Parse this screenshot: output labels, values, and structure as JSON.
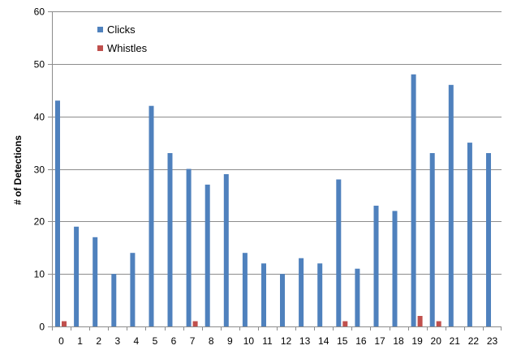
{
  "chart_data": {
    "type": "bar",
    "title": "",
    "xlabel": "",
    "ylabel": "# of Detections",
    "ylim": [
      0,
      60
    ],
    "yticks": [
      0,
      10,
      20,
      30,
      40,
      50,
      60
    ],
    "grid": true,
    "legend_position": "top-left",
    "categories": [
      "0",
      "1",
      "2",
      "3",
      "4",
      "5",
      "6",
      "7",
      "8",
      "9",
      "10",
      "11",
      "12",
      "13",
      "14",
      "15",
      "16",
      "17",
      "18",
      "19",
      "20",
      "21",
      "22",
      "23"
    ],
    "series": [
      {
        "name": "Clicks",
        "color": "#4F81BD",
        "values": [
          43,
          19,
          17,
          10,
          14,
          42,
          33,
          30,
          27,
          29,
          14,
          12,
          10,
          13,
          12,
          28,
          11,
          23,
          22,
          48,
          33,
          46,
          35,
          33
        ]
      },
      {
        "name": "Whistles",
        "color": "#C0504D",
        "values": [
          1,
          0,
          0,
          0,
          0,
          0,
          0,
          1,
          0,
          0,
          0,
          0,
          0,
          0,
          0,
          1,
          0,
          0,
          0,
          2,
          1,
          0,
          0,
          0
        ]
      }
    ]
  }
}
